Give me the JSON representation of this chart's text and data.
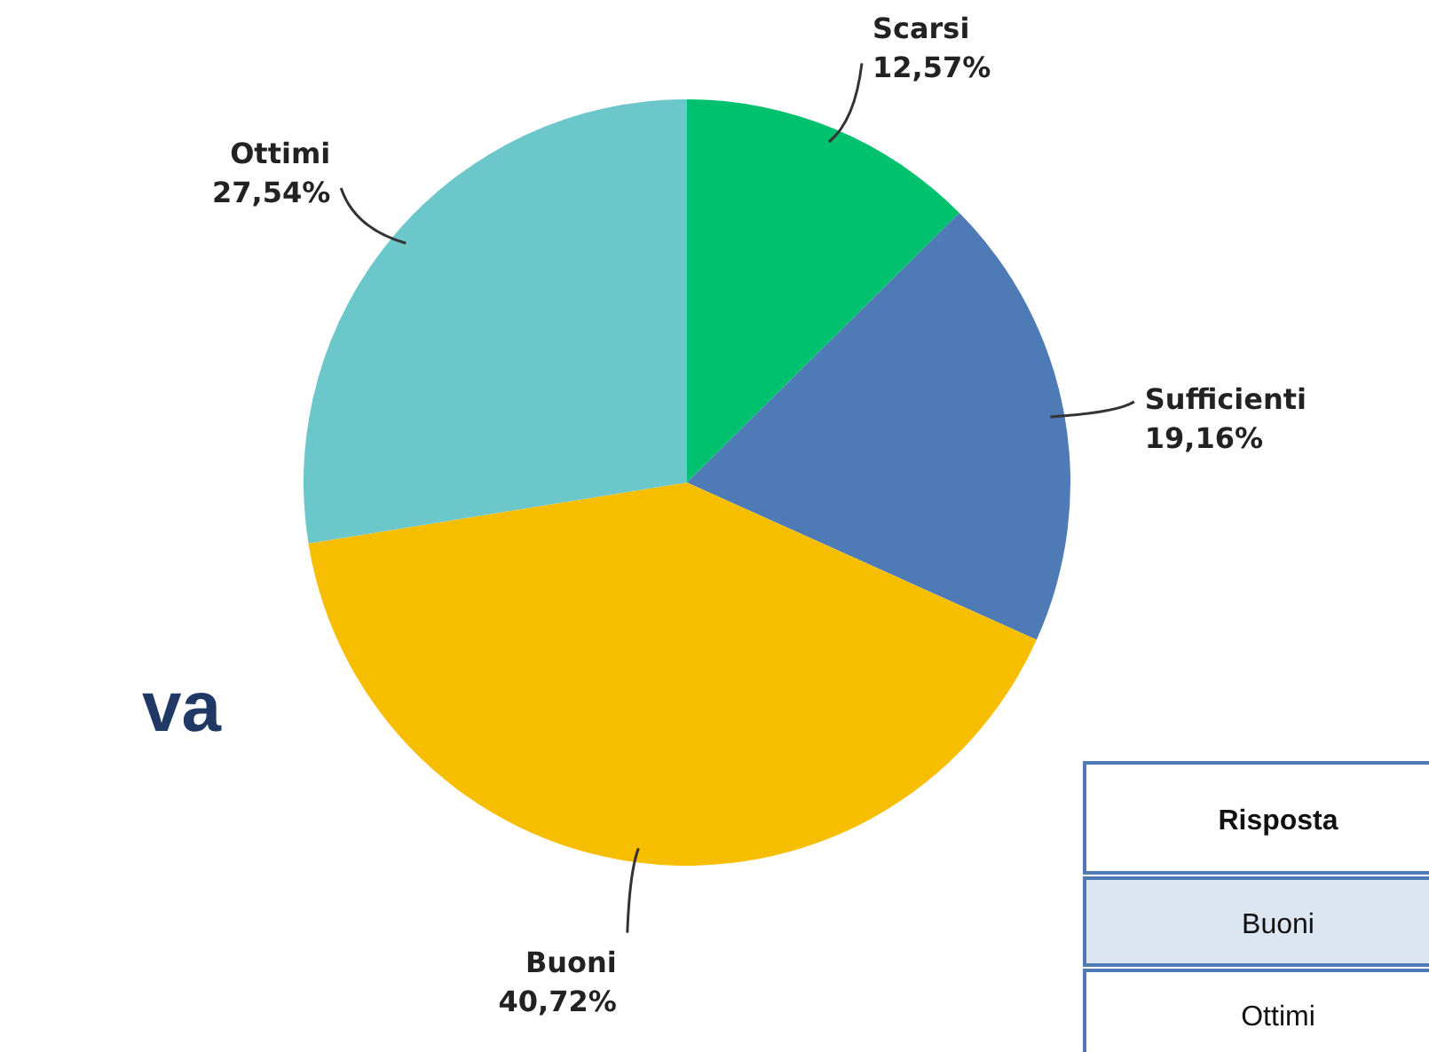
{
  "chart_data": {
    "type": "pie",
    "categories": [
      "Scarsi",
      "Sufficienti",
      "Buoni",
      "Ottimi"
    ],
    "values": [
      12.57,
      19.16,
      40.72,
      27.54
    ],
    "value_labels": [
      "12,57%",
      "19,16%",
      "40,72%",
      "27,54%"
    ],
    "colors": [
      "#00c16e",
      "#4e7ab5",
      "#f7be00",
      "#6cc7cb"
    ],
    "annotations": [
      "va",
      "Risposta",
      "Buoni",
      "Ottimi"
    ]
  }
}
